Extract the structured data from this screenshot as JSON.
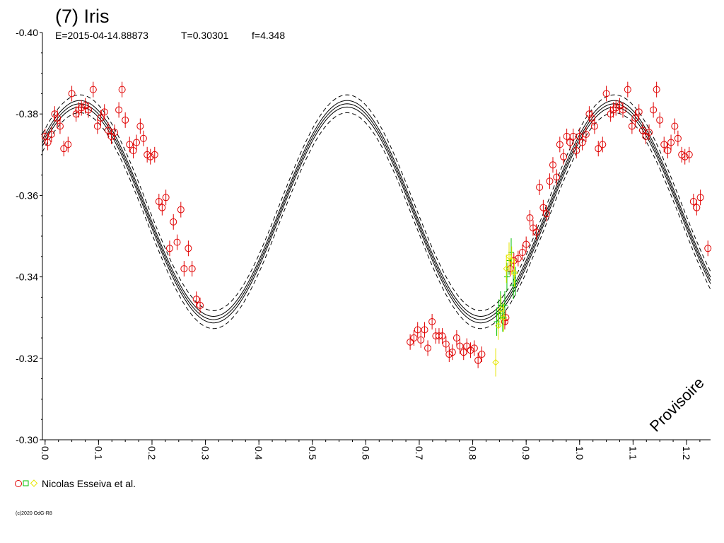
{
  "title": "(7) Iris",
  "subtitle": {
    "epoch": "E=2015-04-14.88873",
    "period": "T=0.30301",
    "f": "f=4.348"
  },
  "watermark": "Provisoire",
  "legend": {
    "label": "Nicolas Esseiva et al."
  },
  "copyright": "(c)2020 OdG-R8",
  "colors": {
    "red": "#e00000",
    "green": "#00c000",
    "yellow": "#e6e600",
    "model": "#000000"
  },
  "chart_data": {
    "type": "scatter",
    "x": {
      "range": [
        -0.005,
        1.245
      ],
      "ticks": [
        0.0,
        0.1,
        0.2,
        0.3,
        0.4,
        0.5,
        0.6,
        0.7,
        0.8,
        0.9,
        1.0,
        1.1,
        1.2
      ]
    },
    "y": {
      "range": [
        -0.4,
        -0.3
      ],
      "inverted": true,
      "ticks": [
        -0.4,
        -0.38,
        -0.36,
        -0.34,
        -0.32,
        -0.3
      ]
    },
    "model": {
      "mean": -0.356,
      "amp": 0.0265,
      "peak_phase": 0.065,
      "dash_offset_small": 0.0008,
      "dash_offset_large": 0.0022
    },
    "series": [
      {
        "color_key": "red",
        "marker": "circle",
        "points": [
          [
            0.0,
            -0.3745
          ],
          [
            0.005,
            -0.373
          ],
          [
            0.012,
            -0.375
          ],
          [
            0.018,
            -0.38
          ],
          [
            0.023,
            -0.379
          ],
          [
            0.028,
            -0.377
          ],
          [
            0.035,
            -0.3715
          ],
          [
            0.043,
            -0.3725
          ],
          [
            0.05,
            -0.385
          ],
          [
            0.058,
            -0.38
          ],
          [
            0.063,
            -0.381
          ],
          [
            0.068,
            -0.3815
          ],
          [
            0.075,
            -0.382
          ],
          [
            0.081,
            -0.381
          ],
          [
            0.09,
            -0.386
          ],
          [
            0.098,
            -0.377
          ],
          [
            0.104,
            -0.379
          ],
          [
            0.111,
            -0.3805
          ],
          [
            0.118,
            -0.376
          ],
          [
            0.124,
            -0.3745
          ],
          [
            0.13,
            -0.3755
          ],
          [
            0.138,
            -0.381
          ],
          [
            0.144,
            -0.386
          ],
          [
            0.15,
            -0.3785
          ],
          [
            0.158,
            -0.3725
          ],
          [
            0.165,
            -0.371
          ],
          [
            0.171,
            -0.373
          ],
          [
            0.178,
            -0.377
          ],
          [
            0.184,
            -0.374
          ],
          [
            0.191,
            -0.37
          ],
          [
            0.197,
            -0.3695
          ],
          [
            0.205,
            -0.37
          ],
          [
            0.213,
            -0.3585
          ],
          [
            0.219,
            -0.357
          ],
          [
            0.226,
            -0.3595
          ],
          [
            0.233,
            -0.347
          ],
          [
            0.24,
            -0.3535
          ],
          [
            0.247,
            -0.3485
          ],
          [
            0.254,
            -0.3565
          ],
          [
            0.26,
            -0.342
          ],
          [
            0.268,
            -0.347
          ],
          [
            0.275,
            -0.342
          ],
          [
            0.283,
            -0.3345
          ],
          [
            0.29,
            -0.333
          ],
          [
            0.683,
            -0.324
          ],
          [
            0.69,
            -0.325
          ],
          [
            0.697,
            -0.327
          ],
          [
            0.703,
            -0.3245
          ],
          [
            0.71,
            -0.327
          ],
          [
            0.716,
            -0.3225
          ],
          [
            0.724,
            -0.329
          ],
          [
            0.731,
            -0.3255
          ],
          [
            0.737,
            -0.3255
          ],
          [
            0.743,
            -0.3255
          ],
          [
            0.75,
            -0.3235
          ],
          [
            0.756,
            -0.321
          ],
          [
            0.762,
            -0.3215
          ],
          [
            0.77,
            -0.325
          ],
          [
            0.776,
            -0.323
          ],
          [
            0.783,
            -0.3215
          ],
          [
            0.789,
            -0.323
          ],
          [
            0.796,
            -0.322
          ],
          [
            0.803,
            -0.3225
          ],
          [
            0.81,
            -0.3195
          ],
          [
            0.817,
            -0.321
          ],
          [
            0.86,
            -0.329
          ],
          [
            0.862,
            -0.33
          ],
          [
            0.87,
            -0.342
          ],
          [
            0.877,
            -0.344
          ],
          [
            0.885,
            -0.3445
          ],
          [
            0.893,
            -0.346
          ],
          [
            0.9,
            -0.348
          ],
          [
            0.907,
            -0.3545
          ],
          [
            0.913,
            -0.352
          ],
          [
            0.919,
            -0.351
          ],
          [
            0.925,
            -0.362
          ],
          [
            0.932,
            -0.357
          ],
          [
            0.938,
            -0.3555
          ],
          [
            0.944,
            -0.3635
          ],
          [
            0.95,
            -0.3675
          ],
          [
            0.957,
            -0.3645
          ],
          [
            0.963,
            -0.3725
          ],
          [
            0.97,
            -0.3695
          ],
          [
            0.976,
            -0.3745
          ],
          [
            0.982,
            -0.373
          ],
          [
            0.988,
            -0.3745
          ],
          [
            0.994,
            -0.371
          ],
          [
            1.0,
            -0.3745
          ],
          [
            1.005,
            -0.373
          ],
          [
            1.012,
            -0.375
          ],
          [
            1.018,
            -0.38
          ],
          [
            1.023,
            -0.379
          ],
          [
            1.028,
            -0.377
          ],
          [
            1.035,
            -0.3715
          ],
          [
            1.043,
            -0.3725
          ],
          [
            1.05,
            -0.385
          ],
          [
            1.058,
            -0.38
          ],
          [
            1.063,
            -0.381
          ],
          [
            1.068,
            -0.3815
          ],
          [
            1.075,
            -0.382
          ],
          [
            1.081,
            -0.381
          ],
          [
            1.09,
            -0.386
          ],
          [
            1.098,
            -0.377
          ],
          [
            1.104,
            -0.379
          ],
          [
            1.111,
            -0.3805
          ],
          [
            1.118,
            -0.376
          ],
          [
            1.124,
            -0.3745
          ],
          [
            1.13,
            -0.3755
          ],
          [
            1.138,
            -0.381
          ],
          [
            1.144,
            -0.386
          ],
          [
            1.15,
            -0.3785
          ],
          [
            1.158,
            -0.3725
          ],
          [
            1.165,
            -0.371
          ],
          [
            1.171,
            -0.373
          ],
          [
            1.178,
            -0.377
          ],
          [
            1.184,
            -0.374
          ],
          [
            1.191,
            -0.37
          ],
          [
            1.197,
            -0.3695
          ],
          [
            1.205,
            -0.37
          ],
          [
            1.213,
            -0.3585
          ],
          [
            1.219,
            -0.357
          ],
          [
            1.226,
            -0.3595
          ],
          [
            1.24,
            -0.347
          ]
        ]
      },
      {
        "color_key": "green",
        "marker": "square",
        "points": [
          [
            0.845,
            -0.329
          ],
          [
            0.849,
            -0.331
          ],
          [
            0.852,
            -0.333
          ],
          [
            0.856,
            -0.33
          ],
          [
            0.86,
            -0.333
          ],
          [
            0.864,
            -0.34
          ],
          [
            0.868,
            -0.344
          ],
          [
            0.872,
            -0.346
          ],
          [
            0.876,
            -0.338
          ],
          [
            0.88,
            -0.339
          ]
        ]
      },
      {
        "color_key": "yellow",
        "marker": "diamond",
        "points": [
          [
            0.843,
            -0.319
          ],
          [
            0.848,
            -0.328
          ],
          [
            0.853,
            -0.332
          ],
          [
            0.858,
            -0.33
          ],
          [
            0.863,
            -0.342
          ],
          [
            0.868,
            -0.345
          ],
          [
            0.873,
            -0.344
          ],
          [
            0.878,
            -0.341
          ]
        ]
      }
    ]
  }
}
